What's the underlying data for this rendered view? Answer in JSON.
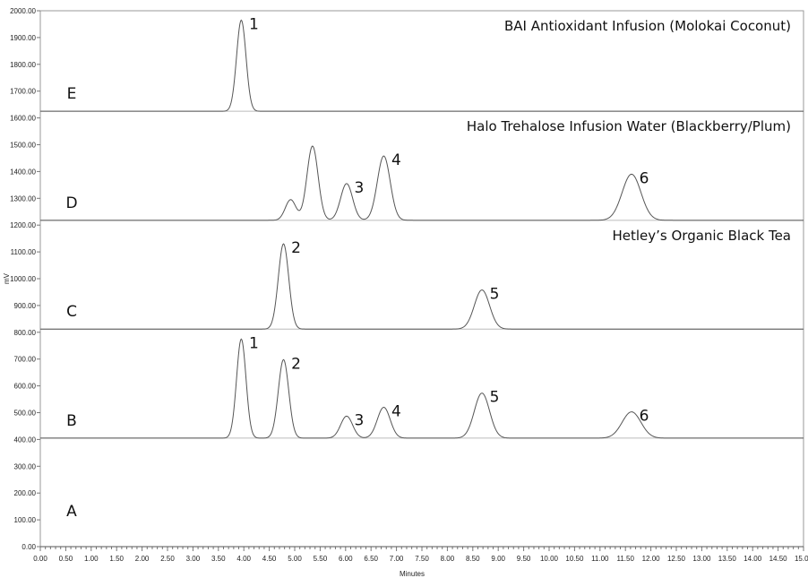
{
  "chart_data": {
    "type": "line",
    "xlabel": "Minutes",
    "ylabel": "mV",
    "xlim": [
      0,
      15
    ],
    "ylim": [
      0,
      2000
    ],
    "x_ticks": [
      "0.00",
      "0.50",
      "1.00",
      "1.50",
      "2.00",
      "2.50",
      "3.00",
      "3.50",
      "4.00",
      "4.50",
      "5.00",
      "5.50",
      "6.00",
      "6.50",
      "7.00",
      "7.50",
      "8.00",
      "8.50",
      "9.00",
      "9.50",
      "10.00",
      "10.50",
      "11.00",
      "11.50",
      "12.00",
      "12.50",
      "13.00",
      "13.50",
      "14.00",
      "14.50",
      "15.00"
    ],
    "y_ticks": [
      "0.00",
      "100.00",
      "200.00",
      "300.00",
      "400.00",
      "500.00",
      "600.00",
      "700.00",
      "800.00",
      "900.00",
      "1000.00",
      "1100.00",
      "1200.00",
      "1300.00",
      "1400.00",
      "1500.00",
      "1600.00",
      "1700.00",
      "1800.00",
      "1900.00",
      "2000.00"
    ],
    "series": [
      {
        "label": "A",
        "title": "",
        "baseline": 0,
        "peaks": []
      },
      {
        "label": "B",
        "title": "",
        "baseline": 405,
        "peaks": [
          {
            "x": 3.95,
            "y": 775,
            "label": "1"
          },
          {
            "x": 4.78,
            "y": 698,
            "label": "2"
          },
          {
            "x": 6.02,
            "y": 487,
            "label": "3"
          },
          {
            "x": 6.75,
            "y": 520,
            "label": "4"
          },
          {
            "x": 8.68,
            "y": 573,
            "label": "5"
          },
          {
            "x": 11.62,
            "y": 503,
            "label": "6"
          }
        ]
      },
      {
        "label": "C",
        "title": "Hetley’s Organic Black Tea",
        "baseline": 812,
        "peaks": [
          {
            "x": 4.78,
            "y": 1130,
            "label": "2"
          },
          {
            "x": 8.68,
            "y": 958,
            "label": "5"
          }
        ]
      },
      {
        "label": "D",
        "title": "Halo Trehalose Infusion Water (Blackberry/Plum)",
        "baseline": 1218,
        "peaks": [
          {
            "x": 4.92,
            "y": 1295,
            "label": ""
          },
          {
            "x": 5.35,
            "y": 1495,
            "label": ""
          },
          {
            "x": 6.02,
            "y": 1355,
            "label": "3"
          },
          {
            "x": 6.75,
            "y": 1458,
            "label": "4"
          },
          {
            "x": 11.62,
            "y": 1390,
            "label": "6"
          }
        ]
      },
      {
        "label": "E",
        "title": "BAI Antioxidant Infusion (Molokai Coconut)",
        "baseline": 1625,
        "peaks": [
          {
            "x": 3.95,
            "y": 1965,
            "label": "1"
          }
        ]
      }
    ],
    "grid": false,
    "legend": "none"
  }
}
